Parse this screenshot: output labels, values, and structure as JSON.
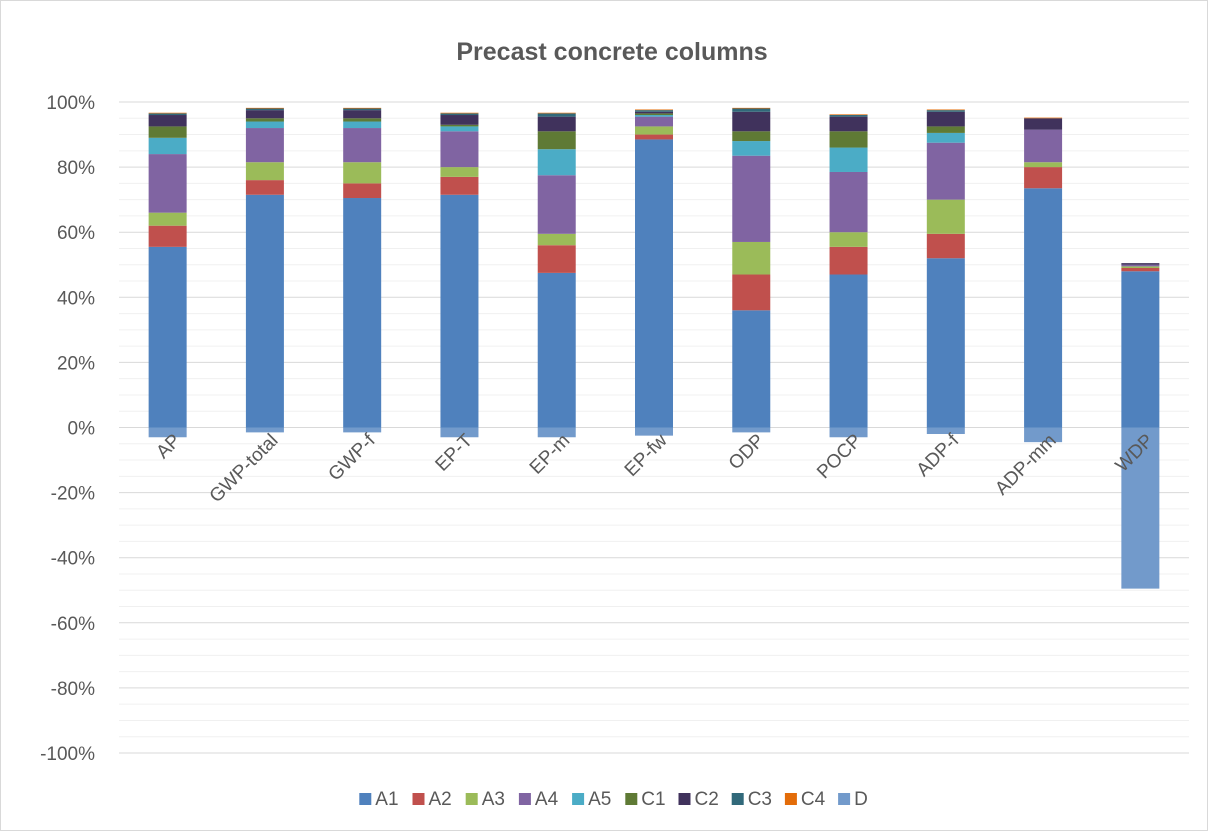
{
  "chart_data": {
    "type": "bar",
    "stacked": true,
    "title": "Precast concrete columns",
    "xlabel": "",
    "ylabel": "",
    "ylim": [
      -100,
      100
    ],
    "y_major_step": 20,
    "y_minor_step": 5,
    "y_tick_labels": [
      "-100%",
      "-80%",
      "-60%",
      "-40%",
      "-20%",
      "0%",
      "20%",
      "40%",
      "60%",
      "80%",
      "100%"
    ],
    "grid": true,
    "legend_position": "bottom",
    "categories": [
      "AP",
      "GWP-total",
      "GWP-f",
      "EP-T",
      "EP-m",
      "EP-fw",
      "ODP",
      "POCP",
      "ADP-f",
      "ADP-mm",
      "WDP"
    ],
    "series": [
      {
        "name": "A1",
        "color": "#4f81bd",
        "values": [
          55.5,
          71.5,
          70.5,
          71.5,
          47.5,
          88.5,
          36,
          47,
          52,
          73.5,
          48
        ]
      },
      {
        "name": "A2",
        "color": "#c0504d",
        "values": [
          6.5,
          4.5,
          4.5,
          5.5,
          8.5,
          1.5,
          11,
          8.5,
          7.5,
          6.5,
          1
        ]
      },
      {
        "name": "A3",
        "color": "#9bbb59",
        "values": [
          4,
          5.5,
          6.5,
          3,
          3.5,
          2.5,
          10,
          4.5,
          10.5,
          1.5,
          0.5
        ]
      },
      {
        "name": "A4",
        "color": "#8064a2",
        "values": [
          18,
          10.5,
          10.5,
          11,
          18,
          3,
          26.5,
          18.5,
          17.5,
          10,
          0.5
        ]
      },
      {
        "name": "A5",
        "color": "#4bacc6",
        "values": [
          5,
          2,
          2,
          1.5,
          8,
          0.5,
          4.5,
          7.5,
          3,
          0,
          0
        ]
      },
      {
        "name": "C1",
        "color": "#5f7a35",
        "values": [
          3.5,
          1,
          1,
          0.5,
          5.5,
          0.5,
          3,
          5,
          2,
          0,
          0
        ]
      },
      {
        "name": "C2",
        "color": "#40325c",
        "values": [
          3.5,
          2.5,
          2.5,
          3,
          4.5,
          0.5,
          6,
          4.5,
          4.5,
          3.5,
          0.5
        ]
      },
      {
        "name": "C3",
        "color": "#31697a",
        "values": [
          0.5,
          0.5,
          0.5,
          0.5,
          1,
          0.5,
          1,
          0.5,
          0.5,
          0,
          0
        ]
      },
      {
        "name": "C4",
        "color": "#e36c09",
        "values": [
          0.2,
          0.2,
          0.2,
          0.2,
          0.2,
          0.2,
          0.2,
          0.2,
          0.2,
          0.2,
          0
        ]
      },
      {
        "name": "D",
        "color": "#729acb",
        "values": [
          -3,
          -1.5,
          -1.5,
          -3,
          -3,
          -2.5,
          -1.5,
          -3,
          -2,
          -4.5,
          -49.5
        ]
      }
    ]
  }
}
